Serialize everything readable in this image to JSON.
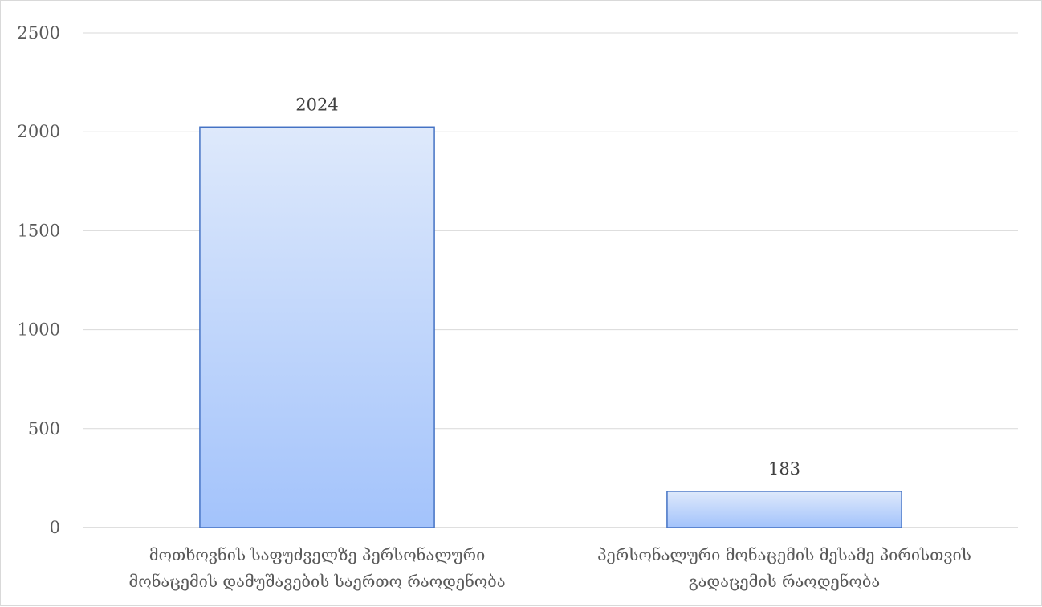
{
  "chart_data": {
    "type": "bar",
    "categories": [
      [
        "მოთხოვნის საფუძველზე პერსონალური",
        "მონაცემის დამუშავების საერთო რაოდენობა"
      ],
      [
        "პერსონალური მონაცემის მესამე პირისთვის",
        "გადაცემის რაოდენობა"
      ]
    ],
    "values": [
      2024,
      183
    ],
    "data_labels": [
      "2024",
      "183"
    ],
    "ylim": [
      0,
      2500
    ],
    "y_ticks": [
      0,
      500,
      1000,
      1500,
      2000,
      2500
    ],
    "grid": true,
    "legend": "none",
    "bar_fill_top": "#dee9fb",
    "bar_fill_bottom": "#a3c3fb",
    "bar_stroke": "#4472c4"
  }
}
